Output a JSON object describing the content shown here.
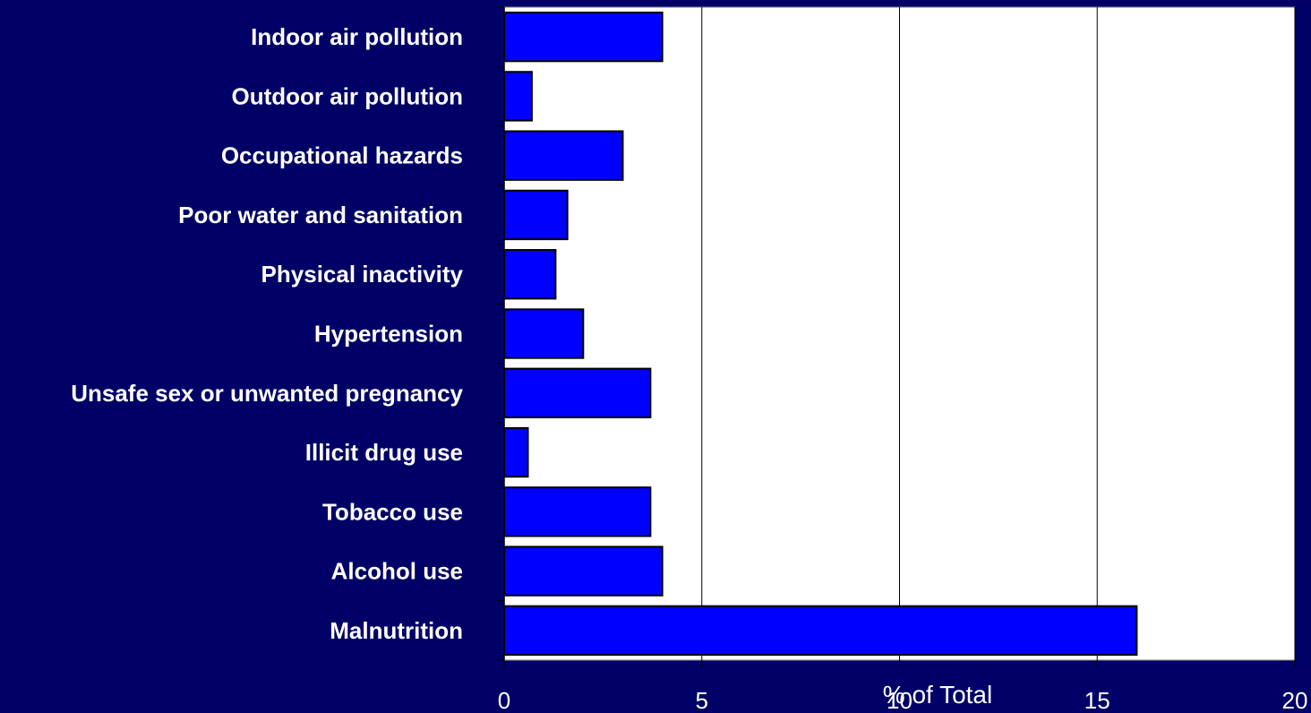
{
  "chart_data": {
    "type": "bar",
    "orientation": "horizontal",
    "categories": [
      "Indoor air pollution",
      "Outdoor air pollution",
      "Occupational hazards",
      "Poor water and sanitation",
      "Physical inactivity",
      "Hypertension",
      "Unsafe sex or unwanted pregnancy",
      "Illicit drug use",
      "Tobacco use",
      "Alcohol use",
      "Malnutrition"
    ],
    "values": [
      4.0,
      0.7,
      3.0,
      1.6,
      1.3,
      2.0,
      3.7,
      0.6,
      3.7,
      4.0,
      16.0
    ],
    "xlabel": "% of Total",
    "xlim": [
      0,
      20
    ],
    "xticks": [
      "0",
      "5",
      "10",
      "15",
      "20"
    ],
    "grid": "vertical",
    "colors": {
      "background": "#000066",
      "plot_area": "#ffffff",
      "bar": "#0000ff",
      "text": "#ffffff"
    }
  }
}
